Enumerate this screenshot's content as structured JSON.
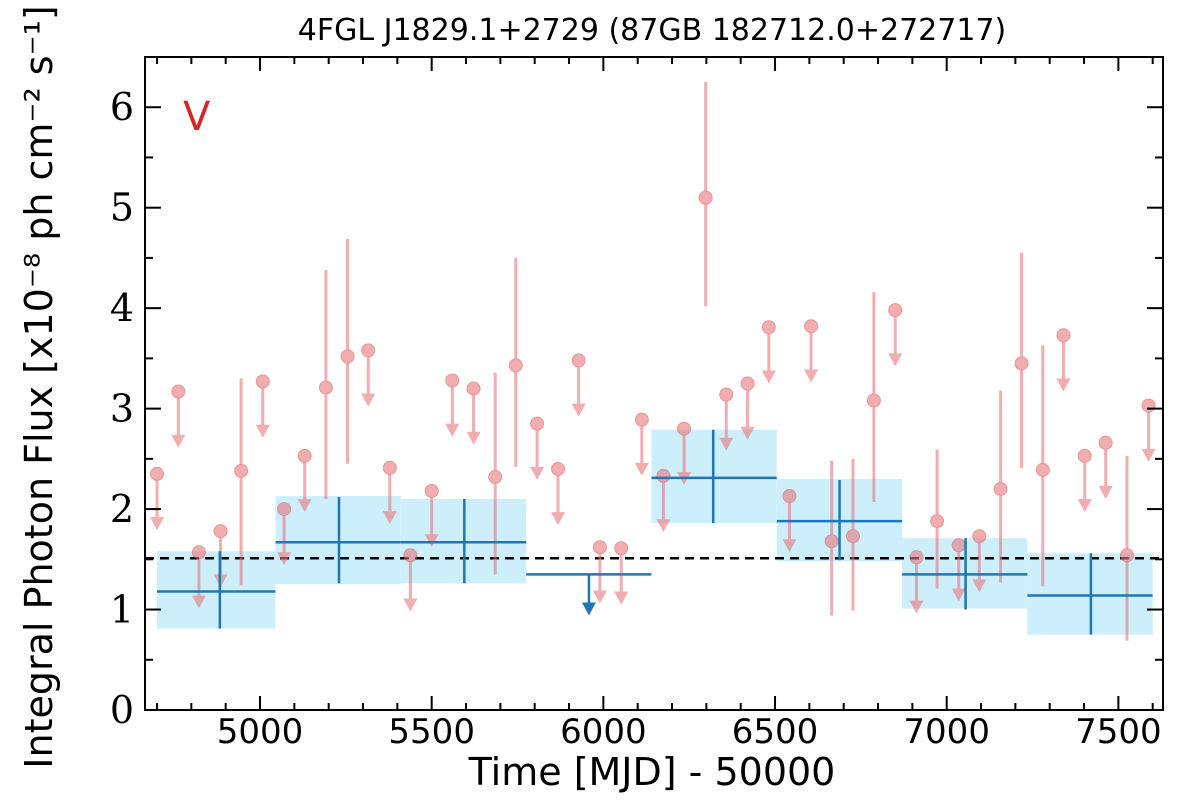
{
  "chart_data": {
    "type": "scatter",
    "title": "4FGL J1829.1+2729 (87GB 182712.0+272717)",
    "xlabel": "Time [MJD] - 50000",
    "ylabel": "Integral Photon Flux [x10⁻⁸ ph cm⁻² s⁻¹]",
    "annotation": "V",
    "xlim": [
      4665,
      7630
    ],
    "ylim": [
      0,
      6.5
    ],
    "xticks": [
      5000,
      5500,
      6000,
      6500,
      7000,
      7500
    ],
    "yticks": [
      0,
      1,
      2,
      3,
      4,
      5,
      6
    ],
    "baseline": 1.51,
    "grid": false,
    "colors": {
      "points": "#e8777b",
      "bins_fill": "#cdeffc",
      "bins_line": "#1f77b4",
      "baseline": "#000000",
      "annotation": "#d62728"
    },
    "bins": [
      {
        "x": 4883,
        "x0": 4700,
        "x1": 5045,
        "y": 1.18,
        "ylo": 0.81,
        "yhi": 1.58
      },
      {
        "x": 5230,
        "x0": 5045,
        "x1": 5410,
        "y": 1.67,
        "ylo": 1.26,
        "yhi": 2.12
      },
      {
        "x": 5595,
        "x0": 5410,
        "x1": 5775,
        "y": 1.67,
        "ylo": 1.26,
        "yhi": 2.1
      },
      {
        "x": 5958,
        "x0": 5775,
        "x1": 6140,
        "y": 1.35,
        "upper_limit": true
      },
      {
        "x": 6320,
        "x0": 6140,
        "x1": 6505,
        "y": 2.31,
        "ylo": 1.86,
        "yhi": 2.79
      },
      {
        "x": 6688,
        "x0": 6505,
        "x1": 6870,
        "y": 1.88,
        "ylo": 1.49,
        "yhi": 2.29
      },
      {
        "x": 7055,
        "x0": 6870,
        "x1": 7235,
        "y": 1.35,
        "ylo": 1.0,
        "yhi": 1.71
      },
      {
        "x": 7420,
        "x0": 7235,
        "x1": 7600,
        "y": 1.14,
        "ylo": 0.75,
        "yhi": 1.56
      }
    ],
    "bin_fill_extent": [
      {
        "x0": 4700,
        "x1": 5045,
        "ylo": 0.81,
        "yhi": 1.58
      },
      {
        "x0": 5045,
        "x1": 5410,
        "ylo": 1.25,
        "yhi": 2.13
      },
      {
        "x0": 5410,
        "x1": 5775,
        "ylo": 1.26,
        "yhi": 2.1
      },
      {
        "x0": 6140,
        "x1": 6505,
        "ylo": 1.86,
        "yhi": 2.79
      },
      {
        "x0": 6505,
        "x1": 6870,
        "ylo": 1.48,
        "yhi": 2.3
      },
      {
        "x0": 6870,
        "x1": 7235,
        "ylo": 1.01,
        "yhi": 1.71
      },
      {
        "x0": 7235,
        "x1": 7600,
        "ylo": 0.75,
        "yhi": 1.56
      }
    ],
    "points": [
      {
        "x": 4700,
        "y": 2.35,
        "upper_limit": true
      },
      {
        "x": 4762,
        "y": 3.17,
        "upper_limit": true
      },
      {
        "x": 4822,
        "y": 1.57,
        "upper_limit": true
      },
      {
        "x": 4885,
        "y": 1.78,
        "upper_limit": true
      },
      {
        "x": 4945,
        "y": 2.38,
        "ylo": 1.24,
        "yhi": 3.3
      },
      {
        "x": 5008,
        "y": 3.27,
        "upper_limit": true
      },
      {
        "x": 5070,
        "y": 2.0,
        "upper_limit": true
      },
      {
        "x": 5130,
        "y": 2.53,
        "upper_limit": true
      },
      {
        "x": 5192,
        "y": 3.21,
        "ylo": 2.1,
        "yhi": 4.38
      },
      {
        "x": 5255,
        "y": 3.52,
        "ylo": 2.45,
        "yhi": 4.69
      },
      {
        "x": 5315,
        "y": 3.58,
        "upper_limit": true
      },
      {
        "x": 5378,
        "y": 2.41,
        "upper_limit": true
      },
      {
        "x": 5438,
        "y": 1.54,
        "upper_limit": true
      },
      {
        "x": 5500,
        "y": 2.18,
        "upper_limit": true
      },
      {
        "x": 5560,
        "y": 3.28,
        "upper_limit": true
      },
      {
        "x": 5622,
        "y": 3.2,
        "upper_limit": true
      },
      {
        "x": 5685,
        "y": 2.32,
        "ylo": 1.35,
        "yhi": 3.36
      },
      {
        "x": 5745,
        "y": 3.43,
        "ylo": 2.42,
        "yhi": 4.5
      },
      {
        "x": 5807,
        "y": 2.85,
        "upper_limit": true
      },
      {
        "x": 5868,
        "y": 2.4,
        "upper_limit": true
      },
      {
        "x": 5928,
        "y": 3.48,
        "upper_limit": true
      },
      {
        "x": 5990,
        "y": 1.62,
        "upper_limit": true
      },
      {
        "x": 6052,
        "y": 1.61,
        "upper_limit": true
      },
      {
        "x": 6112,
        "y": 2.89,
        "upper_limit": true
      },
      {
        "x": 6175,
        "y": 2.33,
        "upper_limit": true
      },
      {
        "x": 6235,
        "y": 2.8,
        "upper_limit": true
      },
      {
        "x": 6298,
        "y": 5.1,
        "ylo": 4.02,
        "yhi": 6.25
      },
      {
        "x": 6358,
        "y": 3.14,
        "upper_limit": true
      },
      {
        "x": 6420,
        "y": 3.25,
        "upper_limit": true
      },
      {
        "x": 6482,
        "y": 3.81,
        "upper_limit": true
      },
      {
        "x": 6542,
        "y": 2.13,
        "upper_limit": true
      },
      {
        "x": 6605,
        "y": 3.82,
        "upper_limit": true
      },
      {
        "x": 6665,
        "y": 1.68,
        "ylo": 0.94,
        "yhi": 2.48
      },
      {
        "x": 6727,
        "y": 1.73,
        "ylo": 0.99,
        "yhi": 2.5
      },
      {
        "x": 6788,
        "y": 3.08,
        "ylo": 2.07,
        "yhi": 4.16
      },
      {
        "x": 6850,
        "y": 3.98,
        "upper_limit": true
      },
      {
        "x": 6912,
        "y": 1.52,
        "upper_limit": true
      },
      {
        "x": 6972,
        "y": 1.88,
        "ylo": 1.21,
        "yhi": 2.59
      },
      {
        "x": 7035,
        "y": 1.64,
        "upper_limit": true
      },
      {
        "x": 7095,
        "y": 1.73,
        "upper_limit": true
      },
      {
        "x": 7157,
        "y": 2.2,
        "ylo": 1.27,
        "yhi": 3.18
      },
      {
        "x": 7218,
        "y": 3.45,
        "ylo": 2.41,
        "yhi": 4.55
      },
      {
        "x": 7280,
        "y": 2.39,
        "ylo": 1.23,
        "yhi": 3.63
      },
      {
        "x": 7340,
        "y": 3.73,
        "upper_limit": true
      },
      {
        "x": 7402,
        "y": 2.53,
        "upper_limit": true
      },
      {
        "x": 7463,
        "y": 2.66,
        "upper_limit": true
      },
      {
        "x": 7525,
        "y": 1.54,
        "ylo": 0.69,
        "yhi": 2.53
      },
      {
        "x": 7588,
        "y": 3.03,
        "upper_limit": true
      }
    ]
  }
}
